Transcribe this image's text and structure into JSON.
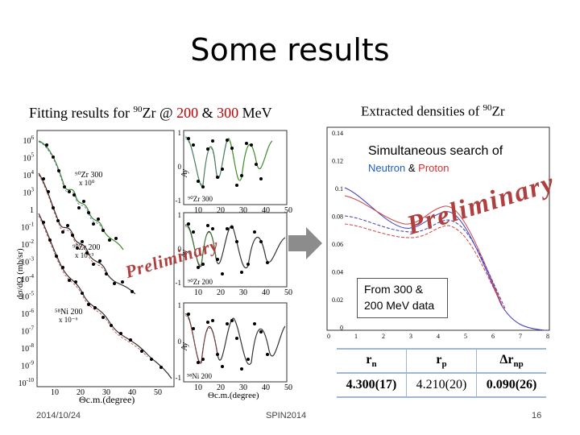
{
  "slide": {
    "title": "Some results",
    "left_heading": {
      "prefix": "Fitting results for ",
      "isotope_mass": "90",
      "element": "Zr @ ",
      "energy_a": "200",
      "joiner": " & ",
      "energy_b": "300",
      "unit": " MeV"
    },
    "right_heading": {
      "prefix": "Extracted densities of ",
      "isotope_mass": "90",
      "element": "Zr"
    },
    "search_note": {
      "line1": "Simultaneous search of",
      "neutron": "Neutron",
      "amp": " & ",
      "proton": "Proton"
    },
    "watermark": "Preliminary",
    "data_note": "From 300 & 200 MeV data",
    "radii_table": {
      "headers": [
        "r",
        "r",
        "r"
      ],
      "header_subs": [
        "n",
        "p",
        "np"
      ],
      "delta_symbol": "Δ",
      "values": [
        "4.300(17)",
        "4.210(20)",
        "0.090(26)"
      ]
    },
    "footer": {
      "date": "2014/10/24",
      "conference": "SPIN2014",
      "page": "16"
    }
  },
  "left_plot": {
    "y_axis_label": "dσ/dΩ (mb/sr)",
    "x_axis_label": "Θc.m.(degree)",
    "y_tick_labels": [
      "10",
      "10",
      "10",
      "10",
      "1",
      "10",
      "10",
      "10",
      "10",
      "10",
      "10",
      "10",
      "10",
      "10",
      "10"
    ],
    "y_tick_exps": [
      "6",
      "5",
      "4",
      "3",
      "",
      "-1",
      "-2",
      "-3",
      "-4",
      "-5",
      "-6",
      "-7",
      "-8",
      "-9",
      "-10"
    ],
    "x_tick_labels": [
      "10",
      "20",
      "30",
      "40",
      "50"
    ],
    "panel_labels": [
      "90Zr 300",
      "× 10^0",
      "90Zr 200",
      "× 10^-3",
      "58Ni 200",
      "× 10^-6"
    ],
    "ay_label": "Ay",
    "ay_ticks": [
      "1",
      "0",
      "-1"
    ],
    "ay_x_ticks": [
      "10",
      "20",
      "30",
      "40",
      "50"
    ],
    "ay_panel_labels": [
      "90Zr 300",
      "90Zr 200",
      "58Ni 200"
    ]
  },
  "right_plot": {
    "y_tick_labels": [
      "0.14",
      "0.12",
      "0.1",
      "0.08",
      "0.06",
      "0.04",
      "0.02",
      "0"
    ],
    "x_tick_labels": [
      "0",
      "1",
      "2",
      "3",
      "4",
      "5",
      "6",
      "7",
      "8"
    ]
  }
}
